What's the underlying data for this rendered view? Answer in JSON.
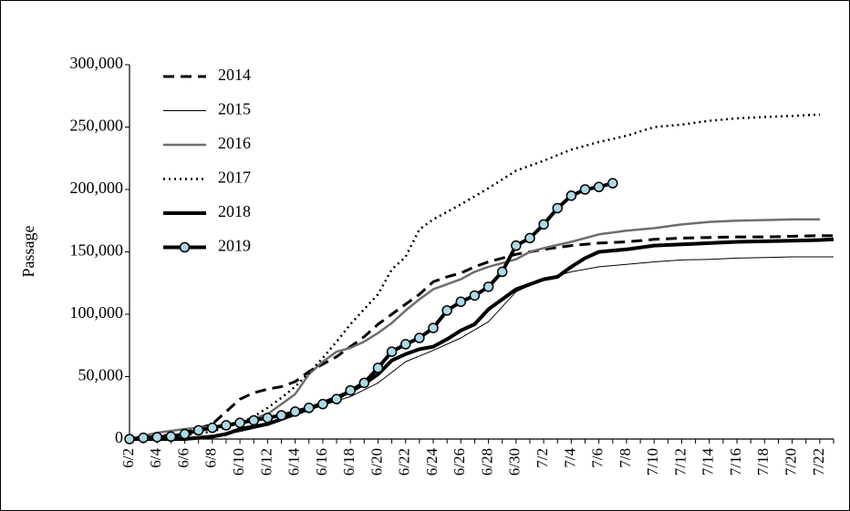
{
  "chart_data": {
    "type": "line",
    "title": "",
    "xlabel": "",
    "ylabel": "Passage",
    "ylim": [
      0,
      300000
    ],
    "y_ticks": [
      0,
      50000,
      100000,
      150000,
      200000,
      250000,
      300000
    ],
    "y_tick_labels": [
      "0",
      "50,000",
      "100,000",
      "150,000",
      "200,000",
      "250,000",
      "300,000"
    ],
    "x_tick_labels": [
      "6/2",
      "6/4",
      "6/6",
      "6/8",
      "6/10",
      "6/12",
      "6/14",
      "6/16",
      "6/18",
      "6/20",
      "6/22",
      "6/24",
      "6/26",
      "6/28",
      "6/30",
      "7/2",
      "7/4",
      "7/6",
      "7/8",
      "7/10",
      "7/12",
      "7/14",
      "7/16",
      "7/18",
      "7/20",
      "7/22"
    ],
    "x_day_range": [
      "6/2",
      "7/23"
    ],
    "grid": false,
    "legend_position": "top-left",
    "series": [
      {
        "name": "2014",
        "style": "dashed",
        "color": "#000000",
        "x": [
          "6/2",
          "6/4",
          "6/6",
          "6/8",
          "6/9",
          "6/10",
          "6/11",
          "6/12",
          "6/13",
          "6/14",
          "6/15",
          "6/16",
          "6/17",
          "6/18",
          "6/19",
          "6/20",
          "6/21",
          "6/22",
          "6/23",
          "6/24",
          "6/25",
          "6/26",
          "6/27",
          "6/28",
          "6/29",
          "6/30",
          "7/1",
          "7/2",
          "7/3",
          "7/4",
          "7/6",
          "7/8",
          "7/10",
          "7/12",
          "7/14",
          "7/16",
          "7/18",
          "7/20",
          "7/22",
          "7/23"
        ],
        "y": [
          0,
          2000,
          5000,
          12000,
          22000,
          32000,
          37000,
          40000,
          42000,
          46000,
          54000,
          60000,
          66000,
          74000,
          82000,
          92000,
          100000,
          108000,
          116000,
          126000,
          130000,
          133000,
          138000,
          142000,
          145000,
          148000,
          150000,
          152000,
          153500,
          155000,
          157000,
          158000,
          160000,
          161000,
          161500,
          162000,
          162000,
          162500,
          163000,
          163000
        ]
      },
      {
        "name": "2015",
        "style": "thin",
        "color": "#000000",
        "x": [
          "6/2",
          "6/4",
          "6/6",
          "6/8",
          "6/10",
          "6/12",
          "6/14",
          "6/16",
          "6/18",
          "6/20",
          "6/22",
          "6/24",
          "6/26",
          "6/28",
          "6/30",
          "7/2",
          "7/4",
          "7/6",
          "7/8",
          "7/10",
          "7/12",
          "7/14",
          "7/16",
          "7/18",
          "7/20",
          "7/22",
          "7/23"
        ],
        "y": [
          0,
          0,
          500,
          2000,
          6000,
          11000,
          19000,
          27000,
          34000,
          45000,
          62000,
          71000,
          81000,
          94000,
          118000,
          128000,
          134000,
          138000,
          140000,
          142000,
          143500,
          144000,
          145000,
          145500,
          146000,
          146000,
          146000
        ]
      },
      {
        "name": "2016",
        "style": "gray",
        "color": "#6e6e6e",
        "x": [
          "6/2",
          "6/4",
          "6/6",
          "6/8",
          "6/10",
          "6/12",
          "6/14",
          "6/15",
          "6/16",
          "6/17",
          "6/18",
          "6/19",
          "6/20",
          "6/21",
          "6/22",
          "6/23",
          "6/24",
          "6/25",
          "6/26",
          "6/27",
          "6/28",
          "6/29",
          "6/30",
          "7/1",
          "7/2",
          "7/4",
          "7/6",
          "7/8",
          "7/10",
          "7/12",
          "7/14",
          "7/16",
          "7/18",
          "7/20",
          "7/22"
        ],
        "y": [
          0,
          5000,
          8000,
          10000,
          13000,
          20000,
          36000,
          52000,
          62000,
          70000,
          73000,
          78000,
          85000,
          93000,
          103000,
          112000,
          120000,
          124000,
          128000,
          134000,
          138000,
          141000,
          144000,
          150000,
          153000,
          158000,
          164000,
          167000,
          169000,
          172000,
          174000,
          175000,
          175500,
          176000,
          176000
        ]
      },
      {
        "name": "2017",
        "style": "dotted",
        "color": "#000000",
        "x": [
          "6/2",
          "6/4",
          "6/6",
          "6/8",
          "6/10",
          "6/11",
          "6/12",
          "6/13",
          "6/14",
          "6/15",
          "6/16",
          "6/17",
          "6/18",
          "6/19",
          "6/20",
          "6/21",
          "6/22",
          "6/23",
          "6/24",
          "6/26",
          "6/28",
          "6/30",
          "7/2",
          "7/4",
          "7/6",
          "7/8",
          "7/10",
          "7/12",
          "7/14",
          "7/16",
          "7/18",
          "7/20",
          "7/22"
        ],
        "y": [
          0,
          1000,
          3000,
          6000,
          13000,
          18000,
          25000,
          33000,
          42000,
          53000,
          65000,
          78000,
          92000,
          104000,
          116000,
          136000,
          146000,
          168000,
          176000,
          188000,
          201000,
          215000,
          223000,
          232000,
          238000,
          243000,
          250000,
          252000,
          255000,
          257000,
          258000,
          259000,
          260000
        ]
      },
      {
        "name": "2018",
        "style": "thick",
        "color": "#000000",
        "x": [
          "6/2",
          "6/4",
          "6/6",
          "6/8",
          "6/9",
          "6/10",
          "6/12",
          "6/14",
          "6/16",
          "6/18",
          "6/19",
          "6/20",
          "6/21",
          "6/22",
          "6/23",
          "6/24",
          "6/25",
          "6/26",
          "6/27",
          "6/28",
          "6/29",
          "6/30",
          "7/1",
          "7/2",
          "7/3",
          "7/4",
          "7/5",
          "7/6",
          "7/8",
          "7/10",
          "7/12",
          "7/14",
          "7/16",
          "7/18",
          "7/20",
          "7/22",
          "7/23"
        ],
        "y": [
          0,
          0,
          0,
          2000,
          4000,
          8000,
          12000,
          20000,
          29000,
          38000,
          44000,
          52000,
          63000,
          68000,
          72000,
          74000,
          80000,
          87000,
          92000,
          104000,
          112000,
          120000,
          124000,
          128000,
          130000,
          138000,
          145000,
          150000,
          152000,
          155000,
          156000,
          157000,
          158000,
          158500,
          159000,
          159500,
          160000
        ]
      },
      {
        "name": "2019",
        "style": "thick-markers",
        "color": "#000000",
        "marker_fill": "#add8e6",
        "x": [
          "6/2",
          "6/3",
          "6/4",
          "6/5",
          "6/6",
          "6/7",
          "6/8",
          "6/9",
          "6/10",
          "6/11",
          "6/12",
          "6/13",
          "6/14",
          "6/15",
          "6/16",
          "6/17",
          "6/18",
          "6/19",
          "6/20",
          "6/21",
          "6/22",
          "6/23",
          "6/24",
          "6/25",
          "6/26",
          "6/27",
          "6/28",
          "6/29",
          "6/30",
          "7/1",
          "7/2",
          "7/3",
          "7/4",
          "7/5",
          "7/6",
          "7/7"
        ],
        "y": [
          0,
          1000,
          1500,
          2000,
          4000,
          7000,
          9000,
          11000,
          13000,
          15000,
          17000,
          19000,
          22000,
          25000,
          28000,
          32000,
          39000,
          45000,
          57000,
          70000,
          76000,
          81000,
          89000,
          103000,
          110000,
          115000,
          122000,
          134000,
          155000,
          161000,
          172000,
          185000,
          195000,
          200000,
          202000,
          205000
        ]
      }
    ]
  }
}
